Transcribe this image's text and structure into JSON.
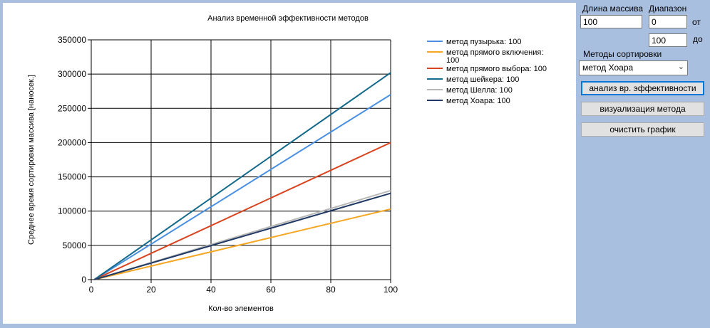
{
  "chart_data": {
    "type": "line",
    "title": "Анализ временной эффективности методов",
    "xlabel": "Кол-во элементов",
    "ylabel": "Среднее время сортировки массива [наносек.]",
    "xlim": [
      0,
      100
    ],
    "ylim": [
      0,
      350000
    ],
    "x_ticks": [
      "0",
      "20",
      "40",
      "60",
      "80",
      "100"
    ],
    "y_ticks": [
      "0",
      "50000",
      "100000",
      "150000",
      "200000",
      "250000",
      "300000",
      "350000"
    ],
    "grid": true,
    "legend_position": "right",
    "series": [
      {
        "name": "метод пузырька: 100",
        "color": "#4a90e2",
        "x": [
          1,
          100
        ],
        "y": [
          0,
          270000
        ]
      },
      {
        "name": "метод прямого включения: 100",
        "color": "#f5a623",
        "x": [
          1,
          100
        ],
        "y": [
          0,
          103000
        ]
      },
      {
        "name": "метод прямого выбора: 100",
        "color": "#d9431e",
        "x": [
          1,
          100
        ],
        "y": [
          0,
          200000
        ]
      },
      {
        "name": "метод шейкера: 100",
        "color": "#136a8a",
        "x": [
          1,
          100
        ],
        "y": [
          0,
          302000
        ]
      },
      {
        "name": "метод Шелла: 100",
        "color": "#b8b8b8",
        "x": [
          1,
          100
        ],
        "y": [
          0,
          130000
        ]
      },
      {
        "name": "метод Хоара: 100",
        "color": "#1f3864",
        "x": [
          1,
          100
        ],
        "y": [
          0,
          126000
        ]
      }
    ]
  },
  "controls": {
    "array_length_label": "Длина массива",
    "array_length_value": "100",
    "range_label": "Диапазон",
    "range_from_value": "0",
    "range_from_label": "от",
    "range_to_value": "100",
    "range_to_label": "до",
    "methods_label": "Методы сортировки",
    "method_selected": "метод Хоара",
    "analyze_button": "анализ вр. эффективности",
    "visualize_button": "визуализация метода",
    "clear_button": "очистить график"
  }
}
